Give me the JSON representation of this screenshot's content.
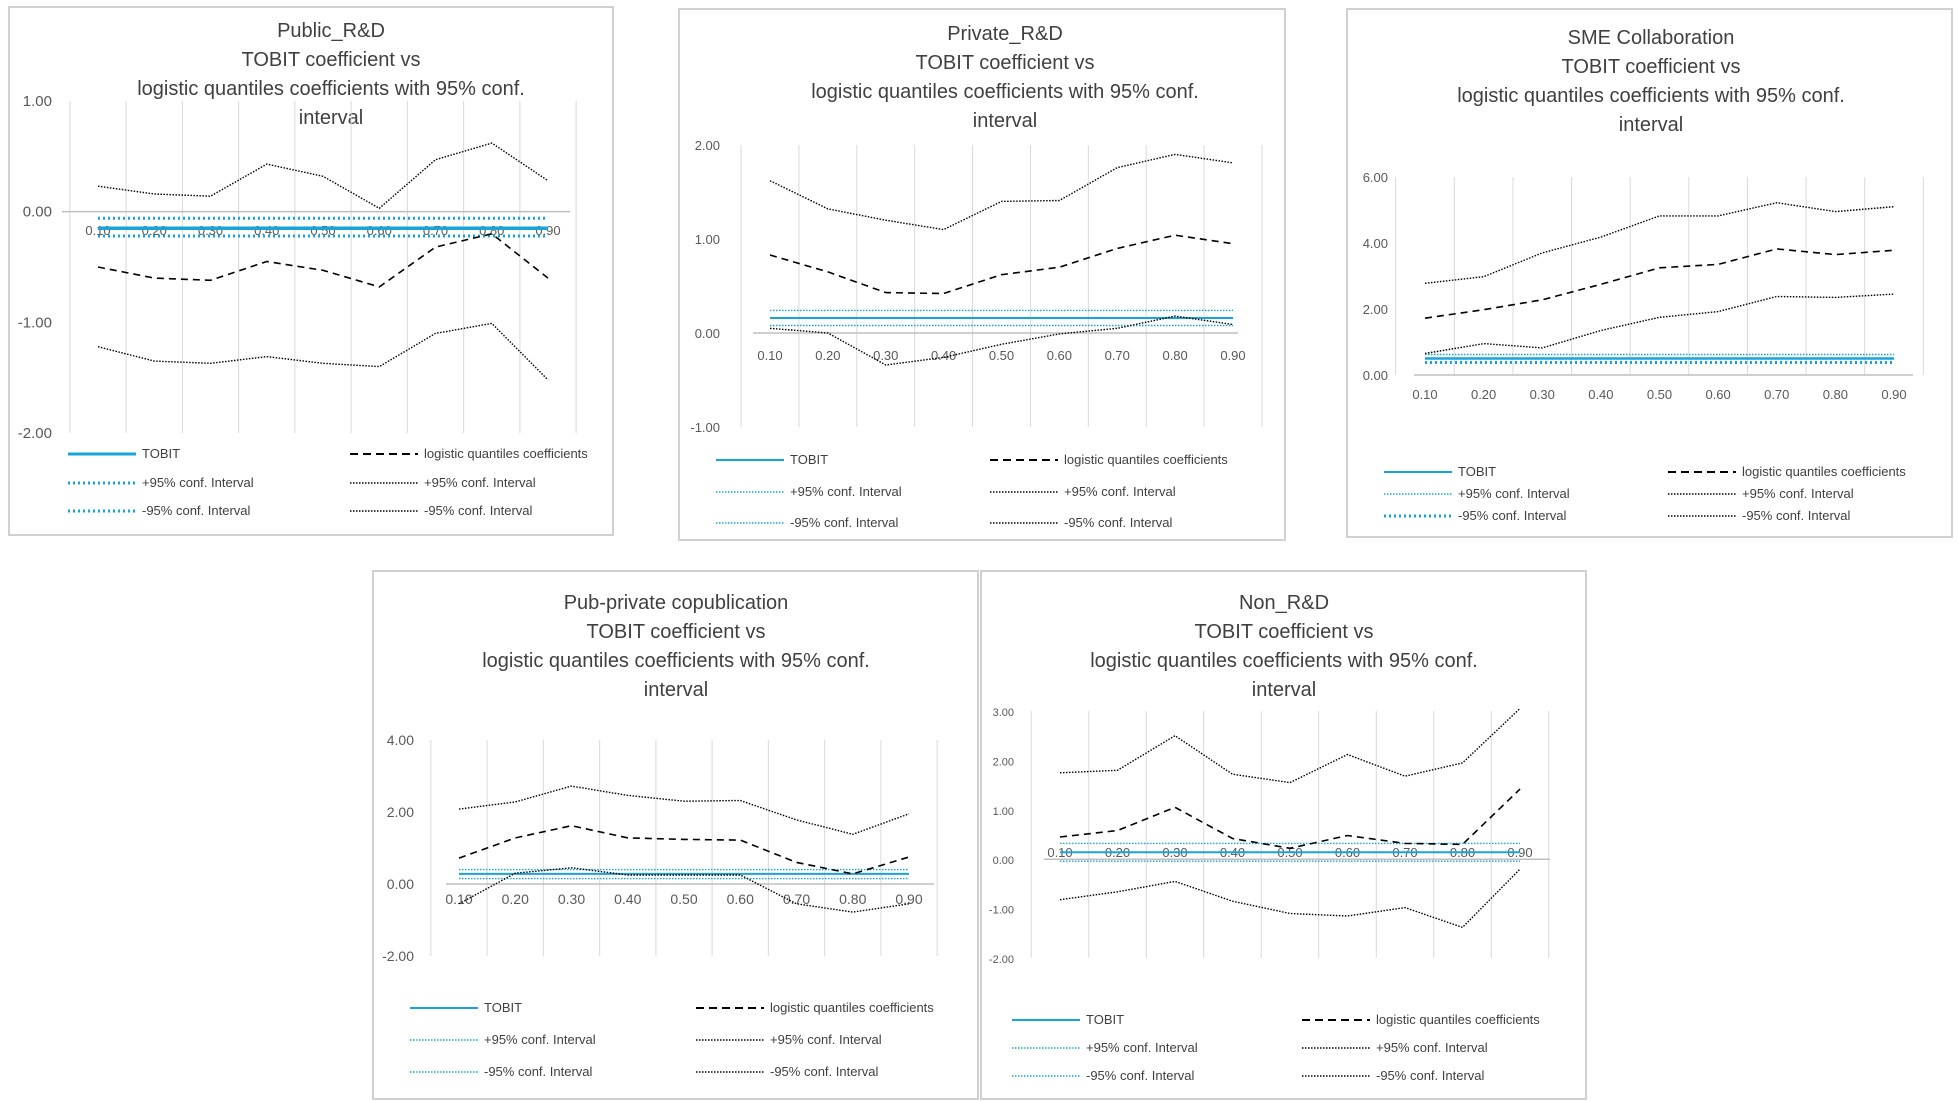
{
  "colors": {
    "tobit": "#1aa3d9",
    "conf_blue": "#1aa3d9",
    "logistic": "#000000",
    "grid": "#d9d9d9",
    "axis": "#bfbfbf",
    "text": "#404040"
  },
  "legend_labels": {
    "tobit": "TOBIT",
    "logistic": "logistic quantiles coefficients",
    "tobit_upper": "+95% conf. Interval",
    "tobit_lower": "-95% conf. Interval",
    "logit_upper": "+95% conf. Interval",
    "logit_lower": "-95% conf. Interval"
  },
  "chart_data": [
    {
      "type": "line",
      "title_lines": [
        "Public_R&D",
        "TOBIT coefficient vs",
        "logistic quantiles coefficients with 95% conf.",
        "interval"
      ],
      "categories": [
        "0.10",
        "0.20",
        "0.30",
        "0.40",
        "0.50",
        "0.60",
        "0.70",
        "0.80",
        "0.90"
      ],
      "y_ticks": [
        "1.00",
        "0.00",
        "-1.00",
        "-2.00"
      ],
      "ylim": [
        -2,
        1
      ],
      "grid": true,
      "legend_position": "bottom",
      "series": [
        {
          "name": "TOBIT",
          "values": [
            -0.15,
            -0.15,
            -0.15,
            -0.15,
            -0.15,
            -0.15,
            -0.15,
            -0.15,
            -0.15
          ]
        },
        {
          "name": "logistic quantiles coefficients",
          "values": [
            -0.5,
            -0.6,
            -0.62,
            -0.45,
            -0.53,
            -0.68,
            -0.32,
            -0.2,
            -0.6
          ]
        },
        {
          "name": "+95% conf. Interval",
          "values": [
            -0.06,
            -0.06,
            -0.06,
            -0.06,
            -0.06,
            -0.06,
            -0.06,
            -0.06,
            -0.06
          ]
        },
        {
          "name": "+95% conf. Interval",
          "values": [
            0.23,
            0.16,
            0.14,
            0.43,
            0.32,
            0.03,
            0.47,
            0.62,
            0.28
          ]
        },
        {
          "name": "-95% conf. Interval",
          "values": [
            -0.22,
            -0.22,
            -0.22,
            -0.22,
            -0.22,
            -0.22,
            -0.22,
            -0.22,
            -0.22
          ]
        },
        {
          "name": "-95% conf. Interval",
          "values": [
            -1.22,
            -1.35,
            -1.37,
            -1.31,
            -1.37,
            -1.4,
            -1.1,
            -1.01,
            -1.52
          ]
        }
      ]
    },
    {
      "type": "line",
      "title_lines": [
        "Private_R&D",
        "TOBIT coefficient vs",
        "logistic quantiles coefficients with 95% conf.",
        "interval"
      ],
      "categories": [
        "0.10",
        "0.20",
        "0.30",
        "0.40",
        "0.50",
        "0.60",
        "0.70",
        "0.80",
        "0.90"
      ],
      "y_ticks": [
        "2.00",
        "1.00",
        "0.00",
        "-1.00"
      ],
      "ylim": [
        -1,
        2
      ],
      "grid": true,
      "legend_position": "bottom",
      "series": [
        {
          "name": "TOBIT",
          "values": [
            0.16,
            0.16,
            0.16,
            0.16,
            0.16,
            0.16,
            0.16,
            0.16,
            0.16
          ]
        },
        {
          "name": "logistic quantiles coefficients",
          "values": [
            0.83,
            0.65,
            0.43,
            0.42,
            0.62,
            0.7,
            0.9,
            1.04,
            0.95
          ]
        },
        {
          "name": "+95% conf. Interval",
          "values": [
            0.24,
            0.24,
            0.24,
            0.24,
            0.24,
            0.24,
            0.24,
            0.24,
            0.24
          ]
        },
        {
          "name": "+95% conf. Interval",
          "values": [
            1.62,
            1.32,
            1.2,
            1.1,
            1.4,
            1.41,
            1.76,
            1.9,
            1.81
          ]
        },
        {
          "name": "-95% conf. Interval",
          "values": [
            0.08,
            0.08,
            0.08,
            0.08,
            0.08,
            0.08,
            0.08,
            0.08,
            0.08
          ]
        },
        {
          "name": "-95% conf. Interval",
          "values": [
            0.05,
            0.0,
            -0.34,
            -0.26,
            -0.12,
            -0.01,
            0.05,
            0.18,
            0.09
          ]
        }
      ]
    },
    {
      "type": "line",
      "title_lines": [
        "SME Collaboration",
        "TOBIT coefficient vs",
        "logistic quantiles coefficients with 95% conf.",
        "interval"
      ],
      "categories": [
        "0.10",
        "0.20",
        "0.30",
        "0.40",
        "0.50",
        "0.60",
        "0.70",
        "0.80",
        "0.90"
      ],
      "y_ticks": [
        "6.00",
        "4.00",
        "2.00",
        "0.00"
      ],
      "ylim": [
        0,
        6
      ],
      "grid": true,
      "legend_position": "bottom",
      "series": [
        {
          "name": "TOBIT",
          "values": [
            0.5,
            0.5,
            0.5,
            0.5,
            0.5,
            0.5,
            0.5,
            0.5,
            0.5
          ]
        },
        {
          "name": "logistic quantiles coefficients",
          "values": [
            1.72,
            1.98,
            2.28,
            2.75,
            3.25,
            3.35,
            3.82,
            3.65,
            3.78
          ]
        },
        {
          "name": "+95% conf. Interval",
          "values": [
            0.62,
            0.62,
            0.62,
            0.62,
            0.62,
            0.62,
            0.62,
            0.62,
            0.62
          ]
        },
        {
          "name": "+95% conf. Interval",
          "values": [
            2.78,
            2.98,
            3.7,
            4.18,
            4.82,
            4.82,
            5.22,
            4.95,
            5.1
          ]
        },
        {
          "name": "-95% conf. Interval",
          "values": [
            0.38,
            0.38,
            0.38,
            0.38,
            0.38,
            0.38,
            0.38,
            0.38,
            0.38
          ]
        },
        {
          "name": "-95% conf. Interval",
          "values": [
            0.65,
            0.95,
            0.82,
            1.35,
            1.75,
            1.92,
            2.38,
            2.35,
            2.45
          ]
        }
      ]
    },
    {
      "type": "line",
      "title_lines": [
        "Pub-private copublication",
        "TOBIT coefficient vs",
        "logistic quantiles coefficients with 95% conf.",
        "interval"
      ],
      "categories": [
        "0.10",
        "0.20",
        "0.30",
        "0.40",
        "0.50",
        "0.60",
        "0.70",
        "0.80",
        "0.90"
      ],
      "y_ticks": [
        "4.00",
        "2.00",
        "0.00",
        "-2.00"
      ],
      "ylim": [
        -2,
        4
      ],
      "grid": true,
      "legend_position": "bottom",
      "series": [
        {
          "name": "TOBIT",
          "values": [
            0.28,
            0.28,
            0.28,
            0.28,
            0.28,
            0.28,
            0.28,
            0.28,
            0.28
          ]
        },
        {
          "name": "logistic quantiles coefficients",
          "values": [
            0.72,
            1.28,
            1.62,
            1.28,
            1.24,
            1.22,
            0.6,
            0.28,
            0.75
          ]
        },
        {
          "name": "+95% conf. Interval",
          "values": [
            0.4,
            0.4,
            0.4,
            0.4,
            0.4,
            0.4,
            0.4,
            0.4,
            0.4
          ]
        },
        {
          "name": "+95% conf. Interval",
          "values": [
            2.08,
            2.28,
            2.72,
            2.46,
            2.3,
            2.32,
            1.78,
            1.38,
            1.95
          ]
        },
        {
          "name": "-95% conf. Interval",
          "values": [
            0.15,
            0.15,
            0.15,
            0.15,
            0.15,
            0.15,
            0.15,
            0.15,
            0.15
          ]
        },
        {
          "name": "-95% conf. Interval",
          "values": [
            -0.55,
            0.3,
            0.45,
            0.25,
            0.25,
            0.25,
            -0.55,
            -0.78,
            -0.55
          ]
        }
      ]
    },
    {
      "type": "line",
      "title_lines": [
        "Non_R&D",
        "TOBIT coefficient vs",
        "logistic quantiles coefficients with 95% conf.",
        "interval"
      ],
      "categories": [
        "0.10",
        "0.20",
        "0.30",
        "0.40",
        "0.50",
        "0.60",
        "0.70",
        "0.80",
        "0.90"
      ],
      "y_ticks": [
        "3.00",
        "2.00",
        "1.00",
        "0.00",
        "-1.00",
        "-2.00"
      ],
      "ylim": [
        -2,
        3
      ],
      "grid": true,
      "legend_position": "bottom",
      "series": [
        {
          "name": "TOBIT",
          "values": [
            0.14,
            0.14,
            0.14,
            0.14,
            0.14,
            0.14,
            0.14,
            0.14,
            0.14
          ]
        },
        {
          "name": "logistic quantiles coefficients",
          "values": [
            0.45,
            0.58,
            1.05,
            0.42,
            0.22,
            0.48,
            0.32,
            0.3,
            1.42
          ]
        },
        {
          "name": "+95% conf. Interval",
          "values": [
            0.32,
            0.32,
            0.32,
            0.32,
            0.32,
            0.32,
            0.32,
            0.32,
            0.32
          ]
        },
        {
          "name": "+95% conf. Interval",
          "values": [
            1.75,
            1.8,
            2.5,
            1.72,
            1.55,
            2.12,
            1.68,
            1.95,
            3.05
          ]
        },
        {
          "name": "-95% conf. Interval",
          "values": [
            -0.04,
            -0.04,
            -0.04,
            -0.04,
            -0.04,
            -0.04,
            -0.04,
            -0.04,
            -0.04
          ]
        },
        {
          "name": "-95% conf. Interval",
          "values": [
            -0.82,
            -0.66,
            -0.45,
            -0.85,
            -1.1,
            -1.15,
            -0.98,
            -1.38,
            -0.2
          ]
        }
      ]
    }
  ]
}
